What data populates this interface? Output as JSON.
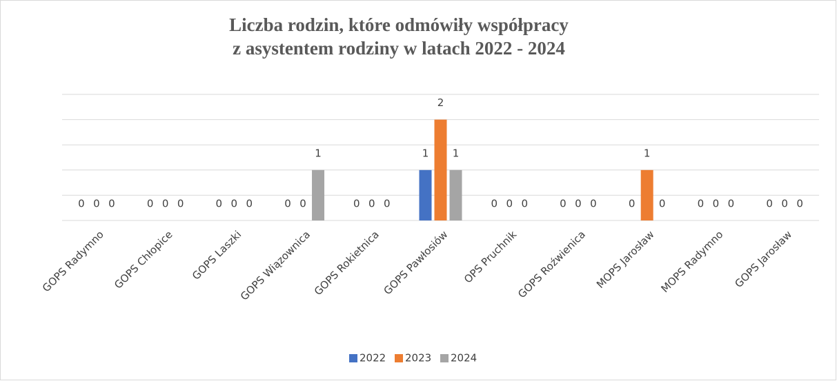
{
  "chart_data": {
    "type": "bar",
    "title": [
      "Liczba rodzin, które odmówiły współpracy",
      "z asystentem rodziny w latach 2022 - 2024"
    ],
    "categories": [
      "GOPS Radymno",
      "GOPS Chłopice",
      "GOPS Laszki",
      "GOPS Wiązownica",
      "GOPS Rokietnica",
      "GOPS Pawłosiów",
      "OPS Pruchnik",
      "GOPS Roźwienica",
      "MOPS Jarosław",
      "MOPS Radymno",
      "GOPS Jarosław"
    ],
    "series": [
      {
        "name": "2022",
        "color": "#4472c4",
        "values": [
          0,
          0,
          0,
          0,
          0,
          1,
          0,
          0,
          0,
          0,
          0
        ]
      },
      {
        "name": "2023",
        "color": "#ed7d31",
        "values": [
          0,
          0,
          0,
          0,
          0,
          2,
          0,
          0,
          1,
          0,
          0
        ]
      },
      {
        "name": "2024",
        "color": "#a5a5a5",
        "values": [
          0,
          0,
          0,
          1,
          0,
          1,
          0,
          0,
          0,
          0,
          0
        ]
      }
    ],
    "ylim": [
      0,
      2.5
    ],
    "yticks": [
      0,
      0.5,
      1,
      1.5,
      2,
      2.5
    ],
    "grid": true,
    "legend": "bottom"
  }
}
